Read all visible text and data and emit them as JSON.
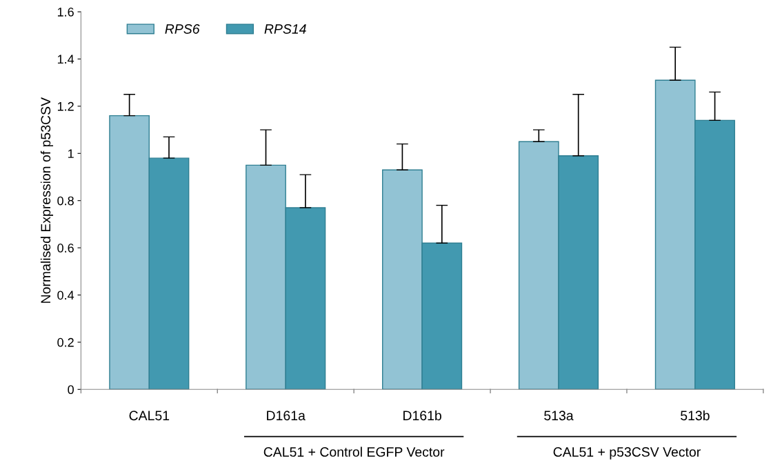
{
  "chart_data": {
    "type": "bar",
    "categories": [
      "CAL51",
      "D161a",
      "D161b",
      "513a",
      "513b"
    ],
    "ylabel": "Normalised Expression of p53CSV",
    "ylim": [
      0,
      1.6
    ],
    "yticks": [
      0,
      0.2,
      0.4,
      0.6,
      0.8,
      1,
      1.2,
      1.4,
      1.6
    ],
    "grid": false,
    "legend": "top left",
    "annotations": [
      "CAL51 + Control EGFP Vector",
      "CAL51 + p53CSV Vector"
    ],
    "series": [
      {
        "name": "RPS6",
        "color": "#92c3d4",
        "values": [
          1.16,
          0.95,
          0.93,
          1.05,
          1.31
        ],
        "errors": [
          [
            1.16,
            1.25
          ],
          [
            0.95,
            1.1
          ],
          [
            0.93,
            1.04
          ],
          [
            1.05,
            1.1
          ],
          [
            1.31,
            1.45
          ]
        ]
      },
      {
        "name": "RPS14",
        "color": "#4299b0",
        "values": [
          0.98,
          0.77,
          0.62,
          0.99,
          1.14
        ],
        "errors": [
          [
            0.98,
            1.07
          ],
          [
            0.77,
            0.91
          ],
          [
            0.62,
            0.78
          ],
          [
            0.99,
            1.25
          ],
          [
            1.14,
            1.26
          ]
        ]
      }
    ]
  }
}
